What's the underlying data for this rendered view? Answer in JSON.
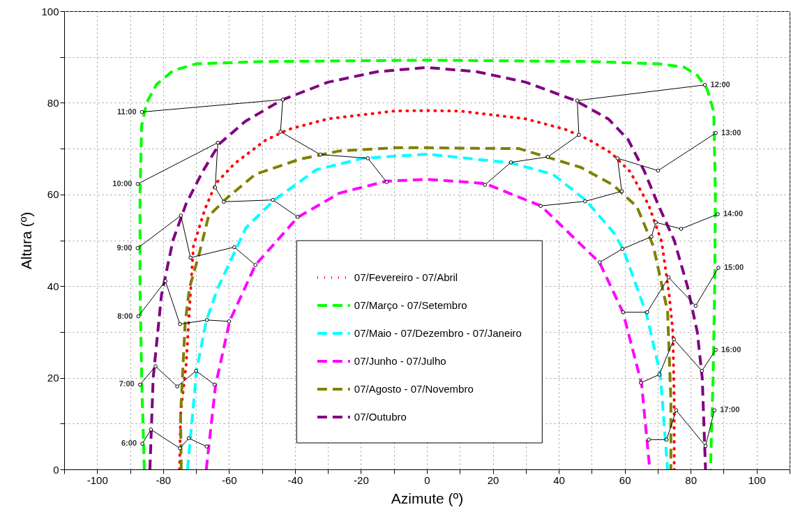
{
  "chart_data": {
    "type": "line",
    "xlabel": "Azimute (º)",
    "ylabel": "Altura (º)",
    "xlim": [
      -110,
      110
    ],
    "ylim": [
      0,
      100
    ],
    "xticks": [
      {
        "value": -110,
        "label": null
      },
      -100,
      {
        "value": -90,
        "label": null
      },
      -80,
      {
        "value": -70,
        "label": null
      },
      -60,
      {
        "value": -50,
        "label": null
      },
      -40,
      {
        "value": -30,
        "label": null
      },
      -20,
      {
        "value": -10,
        "label": null
      },
      0,
      {
        "value": 10,
        "label": null
      },
      20,
      {
        "value": 30,
        "label": null
      },
      40,
      {
        "value": 50,
        "label": null
      },
      60,
      {
        "value": 70,
        "label": null
      },
      80,
      {
        "value": 90,
        "label": null
      },
      100,
      {
        "value": 110,
        "label": null
      }
    ],
    "yticks": [
      0,
      {
        "value": 10,
        "label": null
      },
      20,
      {
        "value": 30,
        "label": null
      },
      40,
      {
        "value": 50,
        "label": null
      },
      60,
      {
        "value": 70,
        "label": null
      },
      80,
      {
        "value": 90,
        "label": null
      },
      100
    ],
    "grid": true,
    "legend": "center",
    "series": [
      {
        "name": "07/Fevereiro - 07/Abril",
        "color": "#ff0000",
        "line_style": "dotted",
        "x": [
          -75,
          -74.7,
          -73,
          -72,
          -70.8,
          -67.3,
          -64,
          -58.4,
          -49,
          -42,
          -30,
          -10,
          0,
          10,
          30,
          42,
          49,
          56,
          61.6,
          67.2,
          71.2,
          73.5,
          74.6,
          75,
          75
        ],
        "values": [
          0,
          12,
          23,
          35,
          48.7,
          56.8,
          62.4,
          66.7,
          71.8,
          74.2,
          76.5,
          78.2,
          78.3,
          78.2,
          76.5,
          74.2,
          72,
          69,
          65,
          57.8,
          49.7,
          38,
          30,
          15,
          0
        ]
      },
      {
        "name": "07/Março - 07/Setembro",
        "color": "#00ff00",
        "line_style": "dashed",
        "x": [
          -85.7,
          -86.5,
          -87,
          -87,
          -86.5,
          -85,
          -82,
          -77,
          -70,
          -50,
          0,
          50,
          70,
          78,
          82,
          85,
          87,
          87.5,
          87.3,
          86.8,
          86
        ],
        "values": [
          0,
          20,
          40,
          60,
          75,
          80,
          84,
          87,
          88.5,
          89,
          89.3,
          89,
          88.5,
          87.8,
          86,
          83,
          78,
          60,
          40,
          20,
          0
        ]
      },
      {
        "name": "07/Maio - 07/Dezembro - 07/Janeiro",
        "color": "#00ffff",
        "line_style": "dashed",
        "x": [
          -72.6,
          -69.8,
          -66.9,
          -63.4,
          -54.9,
          -46.3,
          -33.5,
          -19.3,
          0,
          25.4,
          38.2,
          48.1,
          56.6,
          59.5,
          66.6,
          70.8,
          73
        ],
        "values": [
          0,
          21.8,
          32.4,
          39.6,
          52.7,
          58.8,
          65.4,
          67.9,
          68.8,
          66.9,
          64.4,
          58.8,
          51.7,
          48.1,
          33.9,
          20.7,
          0
        ]
      },
      {
        "name": "07/Junho - 07/Julho",
        "color": "#ff00ff",
        "line_style": "dashed",
        "x": [
          -66.9,
          -64.1,
          -59.8,
          -52,
          -39.2,
          -26.5,
          -12.3,
          0,
          17.6,
          34.6,
          52.4,
          59.5,
          65.1,
          67.6
        ],
        "values": [
          0,
          18.3,
          32.4,
          44.6,
          55,
          60.3,
          62.9,
          63.3,
          62.4,
          57.5,
          45.1,
          34.2,
          18.7,
          0
        ]
      },
      {
        "name": "07/Agosto - 07/Novembro",
        "color": "#808000",
        "line_style": "dashed",
        "x": [
          -74.5,
          -74.7,
          -73.3,
          -72,
          -69,
          -66.2,
          -60.5,
          -52,
          -38.5,
          -26.5,
          -9.5,
          0,
          10,
          28,
          46.7,
          56.6,
          63.7,
          68.7,
          73,
          74,
          74
        ],
        "values": [
          0,
          12,
          32,
          39.6,
          47.2,
          55.3,
          59.3,
          64.4,
          67.7,
          69.5,
          70.2,
          70.2,
          70.1,
          70,
          65.9,
          62,
          57.3,
          48.7,
          34.4,
          15,
          0
        ]
      },
      {
        "name": "07/Outubro",
        "color": "#800080",
        "line_style": "dashed",
        "x": [
          -84,
          -83,
          -80.5,
          -77,
          -73,
          -68,
          -63,
          -55,
          -44,
          -30,
          -15,
          0,
          15,
          30,
          45,
          55,
          61,
          66,
          70,
          75,
          79,
          82,
          83.5,
          84.5
        ],
        "values": [
          0,
          20,
          38,
          50,
          58,
          65,
          71,
          76,
          80.6,
          84.5,
          86.8,
          87.7,
          86.8,
          84.5,
          80.5,
          76.5,
          72,
          65,
          58,
          50,
          40,
          30,
          20,
          0
        ]
      },
      {
        "name": "6:00",
        "color": "#000000",
        "marker": "circle",
        "x": [
          -86.3,
          -83.7,
          -74.9,
          -72.2,
          -66.8
        ],
        "values": [
          5.6,
          8.7,
          4.6,
          6.8,
          5
        ]
      },
      {
        "name": "7:00",
        "color": "#000000",
        "marker": "circle",
        "x": [
          -87,
          -82.3,
          -75.7,
          -70,
          -64.4
        ],
        "values": [
          18.5,
          22.5,
          18.1,
          21.5,
          18.5
        ]
      },
      {
        "name": "8:00",
        "color": "#000000",
        "marker": "circle",
        "x": [
          -87.5,
          -79.3,
          -74.9,
          -66.7,
          -60
        ],
        "values": [
          33.4,
          41.1,
          31.7,
          32.6,
          32.3
        ]
      },
      {
        "name": "9:00",
        "color": "#000000",
        "marker": "circle",
        "x": [
          -87.7,
          -74.6,
          -71.7,
          -58.4,
          -52
        ],
        "values": [
          48.3,
          55.4,
          46.2,
          48.5,
          44.6
        ]
      },
      {
        "name": "10:00",
        "color": "#000000",
        "marker": "circle",
        "x": [
          -87.7,
          -63.4,
          -64.2,
          -61.6,
          -46.7,
          -39.2
        ],
        "values": [
          62.3,
          71.3,
          61.5,
          58.4,
          58.8,
          55.1
        ]
      },
      {
        "name": "11:00",
        "color": "#000000",
        "marker": "circle",
        "x": [
          -86.4,
          -43.7,
          -44.4,
          -32.3,
          -17.9,
          -12.2
        ],
        "values": [
          78,
          80.7,
          73.7,
          68.7,
          67.9,
          62.7
        ]
      },
      {
        "name": "12:00",
        "color": "#000000",
        "marker": "circle",
        "x": [
          84.3,
          45.6,
          46.1,
          36.7,
          25.5,
          17.6
        ],
        "values": [
          83.9,
          80.5,
          73,
          68.2,
          67,
          62.1
        ]
      },
      {
        "name": "13:00",
        "color": "#000000",
        "marker": "circle",
        "x": [
          87.6,
          70.1,
          57.8,
          59.1,
          48,
          34.5
        ],
        "values": [
          73.4,
          65.2,
          67.9,
          60.7,
          58.5,
          57.5
        ]
      },
      {
        "name": "14:00",
        "color": "#000000",
        "marker": "circle",
        "x": [
          88.2,
          77.1,
          69.4,
          68.1,
          59.3,
          52.4
        ],
        "values": [
          55.7,
          52.5,
          53.9,
          50.8,
          48.1,
          45.2
        ]
      },
      {
        "name": "15:00",
        "color": "#000000",
        "marker": "circle",
        "x": [
          88.4,
          81.5,
          73.3,
          66.8,
          59.5
        ],
        "values": [
          44,
          35.7,
          41.9,
          34.3,
          34.3
        ]
      },
      {
        "name": "16:00",
        "color": "#000000",
        "marker": "circle",
        "x": [
          87.6,
          83.4,
          74.9,
          70.5,
          64.9
        ],
        "values": [
          26.1,
          21.5,
          28.4,
          20.7,
          18.9
        ]
      },
      {
        "name": "17:00",
        "color": "#000000",
        "marker": "circle",
        "x": [
          87.2,
          84.5,
          75.6,
          72.7,
          67.3
        ],
        "values": [
          12.9,
          5.1,
          12.9,
          6.5,
          6.5
        ]
      }
    ]
  }
}
